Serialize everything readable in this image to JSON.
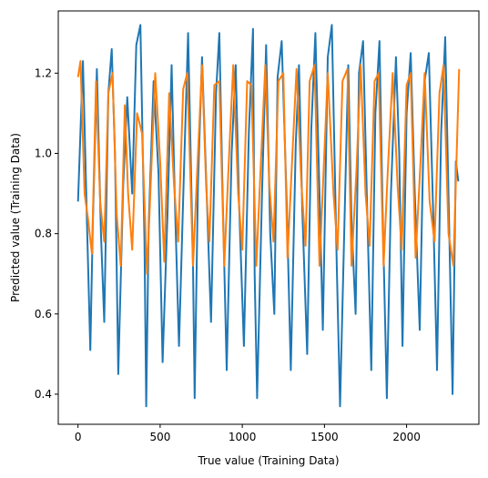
{
  "chart_data": {
    "type": "line",
    "xlabel": "True value (Training Data)",
    "ylabel": "Predicted value (Training Data)",
    "xlim": [
      -120,
      2440
    ],
    "ylim": [
      0.325,
      1.355
    ],
    "xticks": [
      0,
      500,
      1000,
      1500,
      2000
    ],
    "xtick_labels": [
      "0",
      "500",
      "1000",
      "1500",
      "2000"
    ],
    "yticks": [
      0.4,
      0.6,
      0.8,
      1.0,
      1.2
    ],
    "ytick_labels": [
      "0.4",
      "0.6",
      "0.8",
      "1.0",
      "1.2"
    ],
    "grid": false,
    "series": [
      {
        "color": "#1f77b4",
        "x": [
          0,
          30,
          55,
          75,
          90,
          115,
          140,
          160,
          185,
          205,
          225,
          245,
          275,
          300,
          330,
          355,
          380,
          405,
          415,
          430,
          460,
          490,
          515,
          545,
          570,
          590,
          615,
          645,
          670,
          700,
          710,
          730,
          755,
          790,
          810,
          840,
          860,
          880,
          905,
          935,
          960,
          980,
          1010,
          1040,
          1065,
          1075,
          1090,
          1120,
          1145,
          1170,
          1195,
          1215,
          1240,
          1270,
          1295,
          1325,
          1345,
          1365,
          1395,
          1420,
          1445,
          1470,
          1490,
          1520,
          1545,
          1575,
          1595,
          1625,
          1645,
          1665,
          1690,
          1710,
          1735,
          1760,
          1785,
          1810,
          1835,
          1855,
          1880,
          1905,
          1935,
          1955,
          1975,
          2000,
          2025,
          2050,
          2080,
          2110,
          2135,
          2165,
          2185,
          2210,
          2235,
          2260,
          2280,
          2300,
          2315
        ],
        "y": [
          0.88,
          1.23,
          0.82,
          0.51,
          0.82,
          1.21,
          0.8,
          0.58,
          1.15,
          1.26,
          1.0,
          0.45,
          0.92,
          1.14,
          0.9,
          1.27,
          1.32,
          0.78,
          0.37,
          0.82,
          1.18,
          0.95,
          0.48,
          0.85,
          1.22,
          0.88,
          0.52,
          0.96,
          1.3,
          0.72,
          0.39,
          0.92,
          1.24,
          0.82,
          0.58,
          1.15,
          1.3,
          0.9,
          0.46,
          1.0,
          1.22,
          0.88,
          0.52,
          1.05,
          1.31,
          0.7,
          0.39,
          0.9,
          1.27,
          0.8,
          0.6,
          1.19,
          1.28,
          0.88,
          0.46,
          1.02,
          1.22,
          0.86,
          0.5,
          1.06,
          1.3,
          0.9,
          0.56,
          1.24,
          1.32,
          0.72,
          0.37,
          0.88,
          1.22,
          0.83,
          0.6,
          1.2,
          1.28,
          0.86,
          0.46,
          1.1,
          1.28,
          0.84,
          0.39,
          0.9,
          1.24,
          1.0,
          0.52,
          1.1,
          1.25,
          0.9,
          0.56,
          1.18,
          1.25,
          0.8,
          0.46,
          1.05,
          1.29,
          0.8,
          0.4,
          0.98,
          0.93
        ]
      },
      {
        "color": "#ff7f0e",
        "x": [
          0,
          15,
          40,
          60,
          85,
          110,
          135,
          160,
          185,
          210,
          235,
          260,
          285,
          305,
          330,
          360,
          390,
          420,
          445,
          470,
          500,
          525,
          555,
          585,
          610,
          640,
          665,
          700,
          725,
          755,
          780,
          800,
          830,
          860,
          890,
          920,
          945,
          975,
          1000,
          1030,
          1055,
          1085,
          1110,
          1140,
          1165,
          1190,
          1220,
          1250,
          1275,
          1305,
          1330,
          1360,
          1385,
          1410,
          1440,
          1470,
          1495,
          1520,
          1555,
          1580,
          1610,
          1640,
          1665,
          1695,
          1720,
          1750,
          1775,
          1805,
          1830,
          1860,
          1885,
          1915,
          1945,
          1970,
          2000,
          2025,
          2055,
          2085,
          2110,
          2140,
          2170,
          2200,
          2225,
          2255,
          2285,
          2320
        ],
        "y": [
          1.19,
          1.23,
          0.9,
          0.84,
          0.75,
          1.18,
          0.88,
          0.78,
          1.15,
          1.2,
          0.85,
          0.72,
          1.12,
          0.9,
          0.76,
          1.1,
          1.05,
          0.7,
          0.95,
          1.2,
          0.98,
          0.73,
          1.15,
          0.92,
          0.78,
          1.16,
          1.2,
          0.72,
          0.95,
          1.22,
          0.92,
          0.78,
          1.17,
          1.18,
          0.72,
          1.0,
          1.22,
          0.9,
          0.76,
          1.18,
          1.17,
          0.72,
          0.95,
          1.22,
          0.92,
          0.78,
          1.18,
          1.2,
          0.74,
          1.0,
          1.21,
          0.92,
          0.77,
          1.18,
          1.22,
          0.72,
          0.96,
          1.2,
          0.9,
          0.76,
          1.18,
          1.21,
          0.72,
          0.96,
          1.22,
          0.9,
          0.77,
          1.18,
          1.2,
          0.72,
          0.95,
          1.2,
          0.92,
          0.76,
          1.17,
          1.2,
          0.74,
          0.98,
          1.2,
          0.88,
          0.78,
          1.15,
          1.22,
          0.8,
          0.72,
          1.21
        ]
      }
    ]
  }
}
